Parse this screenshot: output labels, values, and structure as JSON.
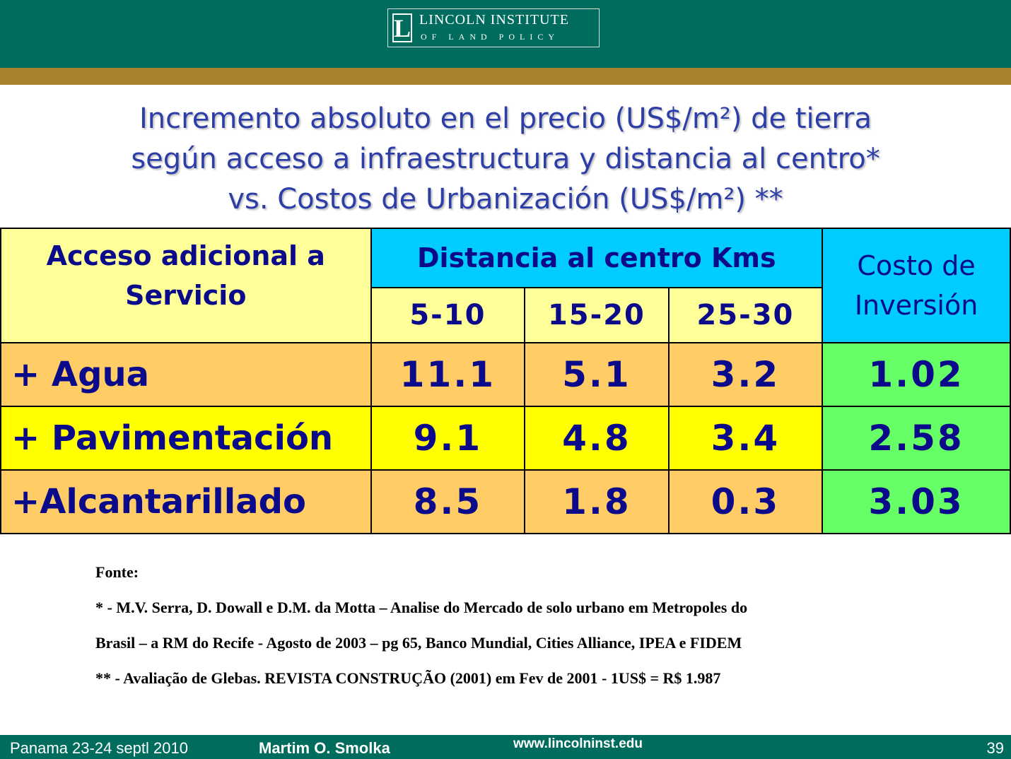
{
  "header": {
    "logo_line1": "LINCOLN INSTITUTE",
    "logo_line2": "OF LAND POLICY",
    "logo_mark": "L"
  },
  "title": {
    "line1": "Incremento absoluto en el precio (US$/m²) de tierra",
    "line2": "según acceso a infraestructura y distancia al centro*",
    "line3": "vs. Costos de Urbanización (US$/m²) **"
  },
  "table": {
    "col_access": "Acceso adicional a Servicio",
    "col_distance": "Distancia al centro Kms",
    "col_cost": "Costo de Inversión",
    "sub_cols": [
      "5-10",
      "15-20",
      "25-30"
    ],
    "rows": [
      {
        "label": "+ Agua",
        "values": [
          "11.1",
          "5.1",
          "3.2"
        ],
        "cost": "1.02"
      },
      {
        "label": "+ Pavimentación",
        "values": [
          "9.1",
          "4.8",
          "3.4"
        ],
        "cost": "2.58"
      },
      {
        "label": "+Alcantarillado",
        "values": [
          "8.5",
          "1.8",
          "0.3"
        ],
        "cost": "3.03"
      }
    ]
  },
  "sources": {
    "heading": "Fonte:",
    "line1": "* - M.V. Serra, D. Dowall e D.M. da Motta – Analise do Mercado de solo urbano em Metropoles do",
    "line2": "Brasil – a RM do Recife - Agosto de 2003 – pg 65, Banco Mundial, Cities Alliance, IPEA e FIDEM",
    "line3": "** -  Avaliação de Glebas. REVISTA CONSTRUÇÃO (2001) em Fev de 2001 - 1US$ = R$ 1.987"
  },
  "footer": {
    "date": "Panama 23-24 septl 2010",
    "author": "Martim O. Smolka",
    "url": "www.lincolninst.edu",
    "page": "39"
  },
  "colors": {
    "header": "#006c5e",
    "gold_band": "#a6822e",
    "title_text": "#2e3ea8",
    "header_yellow": "#ffff99",
    "header_cyan": "#00ccff",
    "row_orange": "#ffcc66",
    "row_yellow": "#ffff00",
    "cost_green": "#66ff66"
  }
}
